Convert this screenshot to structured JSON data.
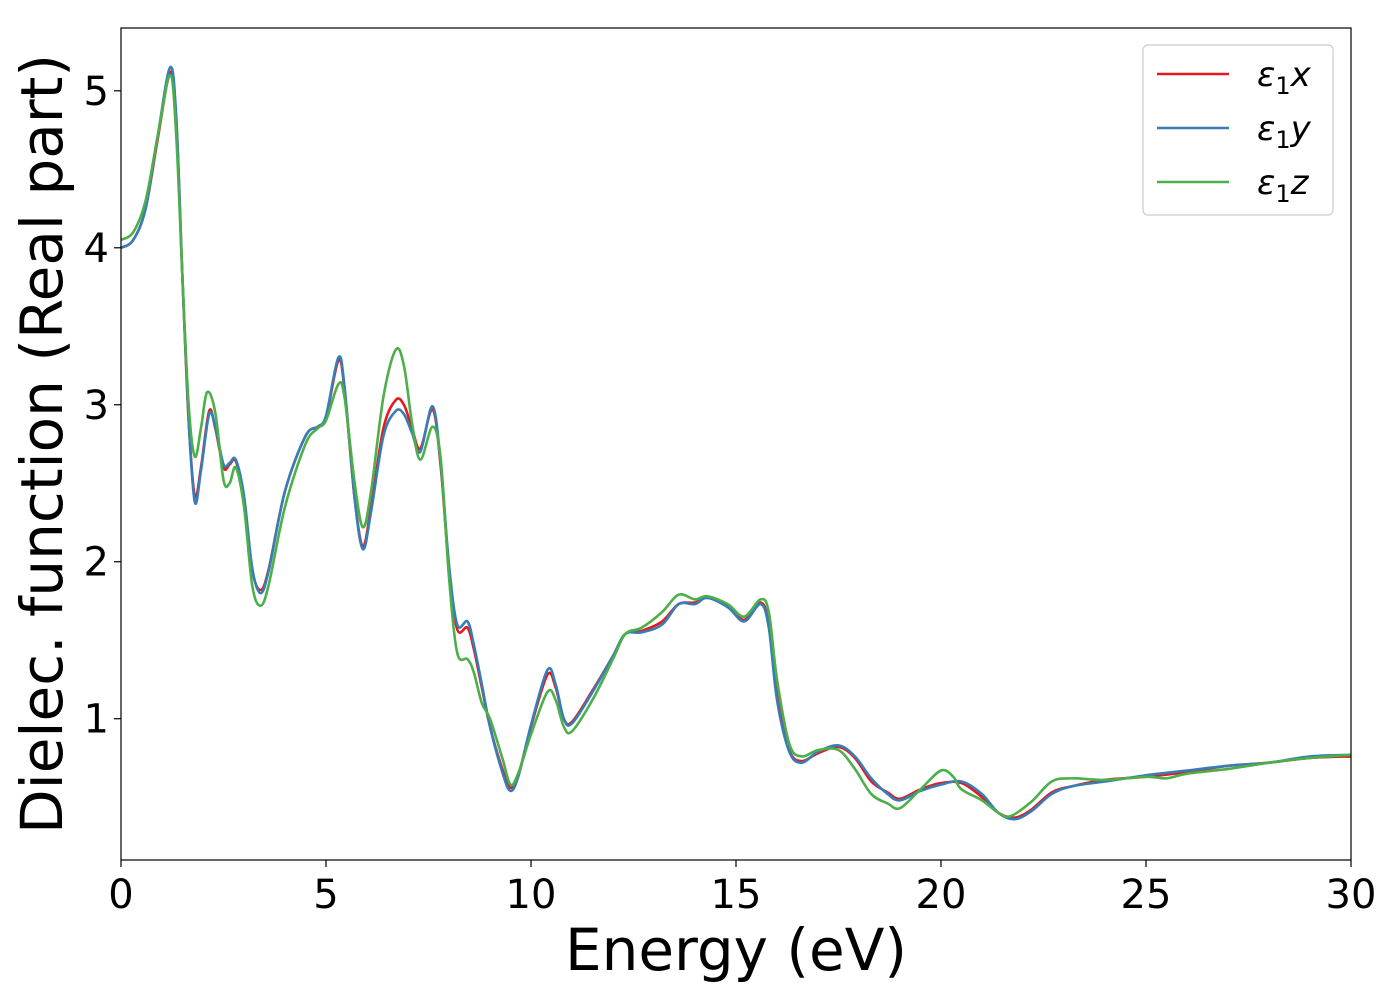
{
  "chart_data": {
    "type": "line",
    "title": "",
    "xlabel": "Energy (eV)",
    "ylabel": "Dielec. function (Real part)",
    "xlim": [
      0,
      30
    ],
    "ylim": [
      0.1,
      5.4
    ],
    "xticks": [
      0,
      5,
      10,
      15,
      20,
      25,
      30
    ],
    "yticks": [
      1,
      2,
      3,
      4,
      5
    ],
    "grid": false,
    "legend_position": "top-right",
    "series": [
      {
        "name": "ε1x",
        "legend_main": "ε",
        "legend_sub": "1",
        "legend_suffix": "x",
        "color": "#e41a1c",
        "points": [
          [
            0,
            4.0
          ],
          [
            0.3,
            4.05
          ],
          [
            0.6,
            4.25
          ],
          [
            0.9,
            4.7
          ],
          [
            1.2,
            5.12
          ],
          [
            1.35,
            4.8
          ],
          [
            1.5,
            3.8
          ],
          [
            1.65,
            2.9
          ],
          [
            1.8,
            2.42
          ],
          [
            1.95,
            2.6
          ],
          [
            2.15,
            2.96
          ],
          [
            2.3,
            2.85
          ],
          [
            2.5,
            2.6
          ],
          [
            2.65,
            2.62
          ],
          [
            2.8,
            2.64
          ],
          [
            3.0,
            2.4
          ],
          [
            3.2,
            1.95
          ],
          [
            3.4,
            1.82
          ],
          [
            3.6,
            1.95
          ],
          [
            4.0,
            2.45
          ],
          [
            4.5,
            2.8
          ],
          [
            4.8,
            2.86
          ],
          [
            5.0,
            2.92
          ],
          [
            5.3,
            3.28
          ],
          [
            5.45,
            3.1
          ],
          [
            5.7,
            2.4
          ],
          [
            5.9,
            2.1
          ],
          [
            6.1,
            2.35
          ],
          [
            6.4,
            2.85
          ],
          [
            6.7,
            3.03
          ],
          [
            6.9,
            3.0
          ],
          [
            7.1,
            2.85
          ],
          [
            7.3,
            2.72
          ],
          [
            7.6,
            2.97
          ],
          [
            7.8,
            2.6
          ],
          [
            8.0,
            1.95
          ],
          [
            8.2,
            1.57
          ],
          [
            8.45,
            1.58
          ],
          [
            8.6,
            1.45
          ],
          [
            8.8,
            1.2
          ],
          [
            9.0,
            0.95
          ],
          [
            9.3,
            0.68
          ],
          [
            9.5,
            0.56
          ],
          [
            9.7,
            0.65
          ],
          [
            10.0,
            0.95
          ],
          [
            10.4,
            1.28
          ],
          [
            10.6,
            1.2
          ],
          [
            10.8,
            1.0
          ],
          [
            11.0,
            0.98
          ],
          [
            11.5,
            1.18
          ],
          [
            12.0,
            1.4
          ],
          [
            12.3,
            1.54
          ],
          [
            12.7,
            1.56
          ],
          [
            13.2,
            1.62
          ],
          [
            13.6,
            1.73
          ],
          [
            14.0,
            1.74
          ],
          [
            14.3,
            1.77
          ],
          [
            14.8,
            1.72
          ],
          [
            15.2,
            1.63
          ],
          [
            15.6,
            1.74
          ],
          [
            15.8,
            1.6
          ],
          [
            16.0,
            1.15
          ],
          [
            16.3,
            0.8
          ],
          [
            16.6,
            0.73
          ],
          [
            17.0,
            0.78
          ],
          [
            17.5,
            0.82
          ],
          [
            17.9,
            0.75
          ],
          [
            18.3,
            0.6
          ],
          [
            18.7,
            0.53
          ],
          [
            19.0,
            0.49
          ],
          [
            19.5,
            0.55
          ],
          [
            20.0,
            0.59
          ],
          [
            20.5,
            0.59
          ],
          [
            21.0,
            0.5
          ],
          [
            21.4,
            0.4
          ],
          [
            21.8,
            0.37
          ],
          [
            22.2,
            0.42
          ],
          [
            22.7,
            0.53
          ],
          [
            23.2,
            0.57
          ],
          [
            24.0,
            0.61
          ],
          [
            25.0,
            0.63
          ],
          [
            26.0,
            0.66
          ],
          [
            27.0,
            0.7
          ],
          [
            28.0,
            0.72
          ],
          [
            29.0,
            0.75
          ],
          [
            30,
            0.76
          ]
        ]
      },
      {
        "name": "ε1y",
        "legend_main": "ε",
        "legend_sub": "1",
        "legend_suffix": "y",
        "color": "#377eb8",
        "points": [
          [
            0,
            4.0
          ],
          [
            0.3,
            4.05
          ],
          [
            0.6,
            4.25
          ],
          [
            0.9,
            4.72
          ],
          [
            1.2,
            5.15
          ],
          [
            1.35,
            4.82
          ],
          [
            1.5,
            3.8
          ],
          [
            1.65,
            2.9
          ],
          [
            1.8,
            2.38
          ],
          [
            1.95,
            2.58
          ],
          [
            2.15,
            2.94
          ],
          [
            2.3,
            2.86
          ],
          [
            2.5,
            2.62
          ],
          [
            2.65,
            2.63
          ],
          [
            2.8,
            2.65
          ],
          [
            3.0,
            2.42
          ],
          [
            3.2,
            1.96
          ],
          [
            3.4,
            1.8
          ],
          [
            3.6,
            1.94
          ],
          [
            4.0,
            2.45
          ],
          [
            4.5,
            2.8
          ],
          [
            4.8,
            2.86
          ],
          [
            5.0,
            2.93
          ],
          [
            5.3,
            3.3
          ],
          [
            5.45,
            3.12
          ],
          [
            5.7,
            2.4
          ],
          [
            5.9,
            2.08
          ],
          [
            6.1,
            2.32
          ],
          [
            6.4,
            2.8
          ],
          [
            6.7,
            2.96
          ],
          [
            6.9,
            2.94
          ],
          [
            7.1,
            2.82
          ],
          [
            7.3,
            2.7
          ],
          [
            7.6,
            2.99
          ],
          [
            7.8,
            2.62
          ],
          [
            8.0,
            1.98
          ],
          [
            8.2,
            1.6
          ],
          [
            8.45,
            1.62
          ],
          [
            8.6,
            1.48
          ],
          [
            8.8,
            1.22
          ],
          [
            9.0,
            0.95
          ],
          [
            9.3,
            0.66
          ],
          [
            9.5,
            0.54
          ],
          [
            9.7,
            0.64
          ],
          [
            10.0,
            0.96
          ],
          [
            10.4,
            1.31
          ],
          [
            10.6,
            1.22
          ],
          [
            10.8,
            1.0
          ],
          [
            11.0,
            0.97
          ],
          [
            11.5,
            1.17
          ],
          [
            12.0,
            1.4
          ],
          [
            12.3,
            1.54
          ],
          [
            12.7,
            1.55
          ],
          [
            13.2,
            1.6
          ],
          [
            13.6,
            1.73
          ],
          [
            14.0,
            1.73
          ],
          [
            14.3,
            1.77
          ],
          [
            14.8,
            1.71
          ],
          [
            15.2,
            1.62
          ],
          [
            15.6,
            1.73
          ],
          [
            15.8,
            1.58
          ],
          [
            16.0,
            1.12
          ],
          [
            16.3,
            0.79
          ],
          [
            16.6,
            0.72
          ],
          [
            17.0,
            0.79
          ],
          [
            17.5,
            0.83
          ],
          [
            17.9,
            0.76
          ],
          [
            18.3,
            0.62
          ],
          [
            18.7,
            0.52
          ],
          [
            19.0,
            0.48
          ],
          [
            19.5,
            0.54
          ],
          [
            20.0,
            0.58
          ],
          [
            20.5,
            0.6
          ],
          [
            21.0,
            0.52
          ],
          [
            21.4,
            0.4
          ],
          [
            21.8,
            0.36
          ],
          [
            22.2,
            0.41
          ],
          [
            22.7,
            0.52
          ],
          [
            23.2,
            0.57
          ],
          [
            24.0,
            0.6
          ],
          [
            25.0,
            0.64
          ],
          [
            26.0,
            0.67
          ],
          [
            27.0,
            0.7
          ],
          [
            28.0,
            0.72
          ],
          [
            29.0,
            0.76
          ],
          [
            30,
            0.77
          ]
        ]
      },
      {
        "name": "ε1z",
        "legend_main": "ε",
        "legend_sub": "1",
        "legend_suffix": "z",
        "color": "#4daf4a",
        "points": [
          [
            0,
            4.05
          ],
          [
            0.3,
            4.1
          ],
          [
            0.6,
            4.3
          ],
          [
            0.9,
            4.72
          ],
          [
            1.2,
            5.1
          ],
          [
            1.35,
            4.7
          ],
          [
            1.5,
            3.8
          ],
          [
            1.65,
            3.0
          ],
          [
            1.8,
            2.67
          ],
          [
            1.95,
            2.85
          ],
          [
            2.1,
            3.08
          ],
          [
            2.3,
            2.95
          ],
          [
            2.5,
            2.52
          ],
          [
            2.65,
            2.5
          ],
          [
            2.8,
            2.6
          ],
          [
            3.0,
            2.35
          ],
          [
            3.2,
            1.85
          ],
          [
            3.4,
            1.72
          ],
          [
            3.6,
            1.85
          ],
          [
            4.0,
            2.35
          ],
          [
            4.5,
            2.75
          ],
          [
            4.8,
            2.85
          ],
          [
            5.0,
            2.9
          ],
          [
            5.3,
            3.13
          ],
          [
            5.45,
            3.05
          ],
          [
            5.7,
            2.5
          ],
          [
            5.9,
            2.22
          ],
          [
            6.1,
            2.45
          ],
          [
            6.4,
            3.05
          ],
          [
            6.7,
            3.35
          ],
          [
            6.9,
            3.25
          ],
          [
            7.1,
            2.88
          ],
          [
            7.3,
            2.65
          ],
          [
            7.6,
            2.86
          ],
          [
            7.8,
            2.65
          ],
          [
            8.0,
            1.9
          ],
          [
            8.2,
            1.42
          ],
          [
            8.45,
            1.38
          ],
          [
            8.6,
            1.3
          ],
          [
            8.8,
            1.1
          ],
          [
            9.0,
            1.0
          ],
          [
            9.3,
            0.75
          ],
          [
            9.5,
            0.58
          ],
          [
            9.7,
            0.66
          ],
          [
            10.0,
            0.9
          ],
          [
            10.4,
            1.17
          ],
          [
            10.6,
            1.12
          ],
          [
            10.8,
            0.95
          ],
          [
            11.0,
            0.92
          ],
          [
            11.5,
            1.12
          ],
          [
            12.0,
            1.38
          ],
          [
            12.3,
            1.54
          ],
          [
            12.7,
            1.58
          ],
          [
            13.2,
            1.68
          ],
          [
            13.6,
            1.79
          ],
          [
            14.0,
            1.76
          ],
          [
            14.3,
            1.78
          ],
          [
            14.8,
            1.73
          ],
          [
            15.2,
            1.65
          ],
          [
            15.6,
            1.76
          ],
          [
            15.8,
            1.68
          ],
          [
            16.0,
            1.25
          ],
          [
            16.3,
            0.84
          ],
          [
            16.6,
            0.76
          ],
          [
            17.0,
            0.8
          ],
          [
            17.5,
            0.8
          ],
          [
            17.9,
            0.68
          ],
          [
            18.3,
            0.52
          ],
          [
            18.7,
            0.46
          ],
          [
            19.0,
            0.43
          ],
          [
            19.5,
            0.55
          ],
          [
            20.0,
            0.67
          ],
          [
            20.3,
            0.63
          ],
          [
            20.5,
            0.55
          ],
          [
            21.0,
            0.48
          ],
          [
            21.4,
            0.4
          ],
          [
            21.7,
            0.38
          ],
          [
            22.2,
            0.47
          ],
          [
            22.7,
            0.6
          ],
          [
            23.2,
            0.62
          ],
          [
            24.0,
            0.61
          ],
          [
            25.0,
            0.63
          ],
          [
            25.5,
            0.62
          ],
          [
            26.0,
            0.65
          ],
          [
            27.0,
            0.68
          ],
          [
            28.0,
            0.72
          ],
          [
            29.0,
            0.75
          ],
          [
            30,
            0.77
          ]
        ]
      }
    ]
  }
}
